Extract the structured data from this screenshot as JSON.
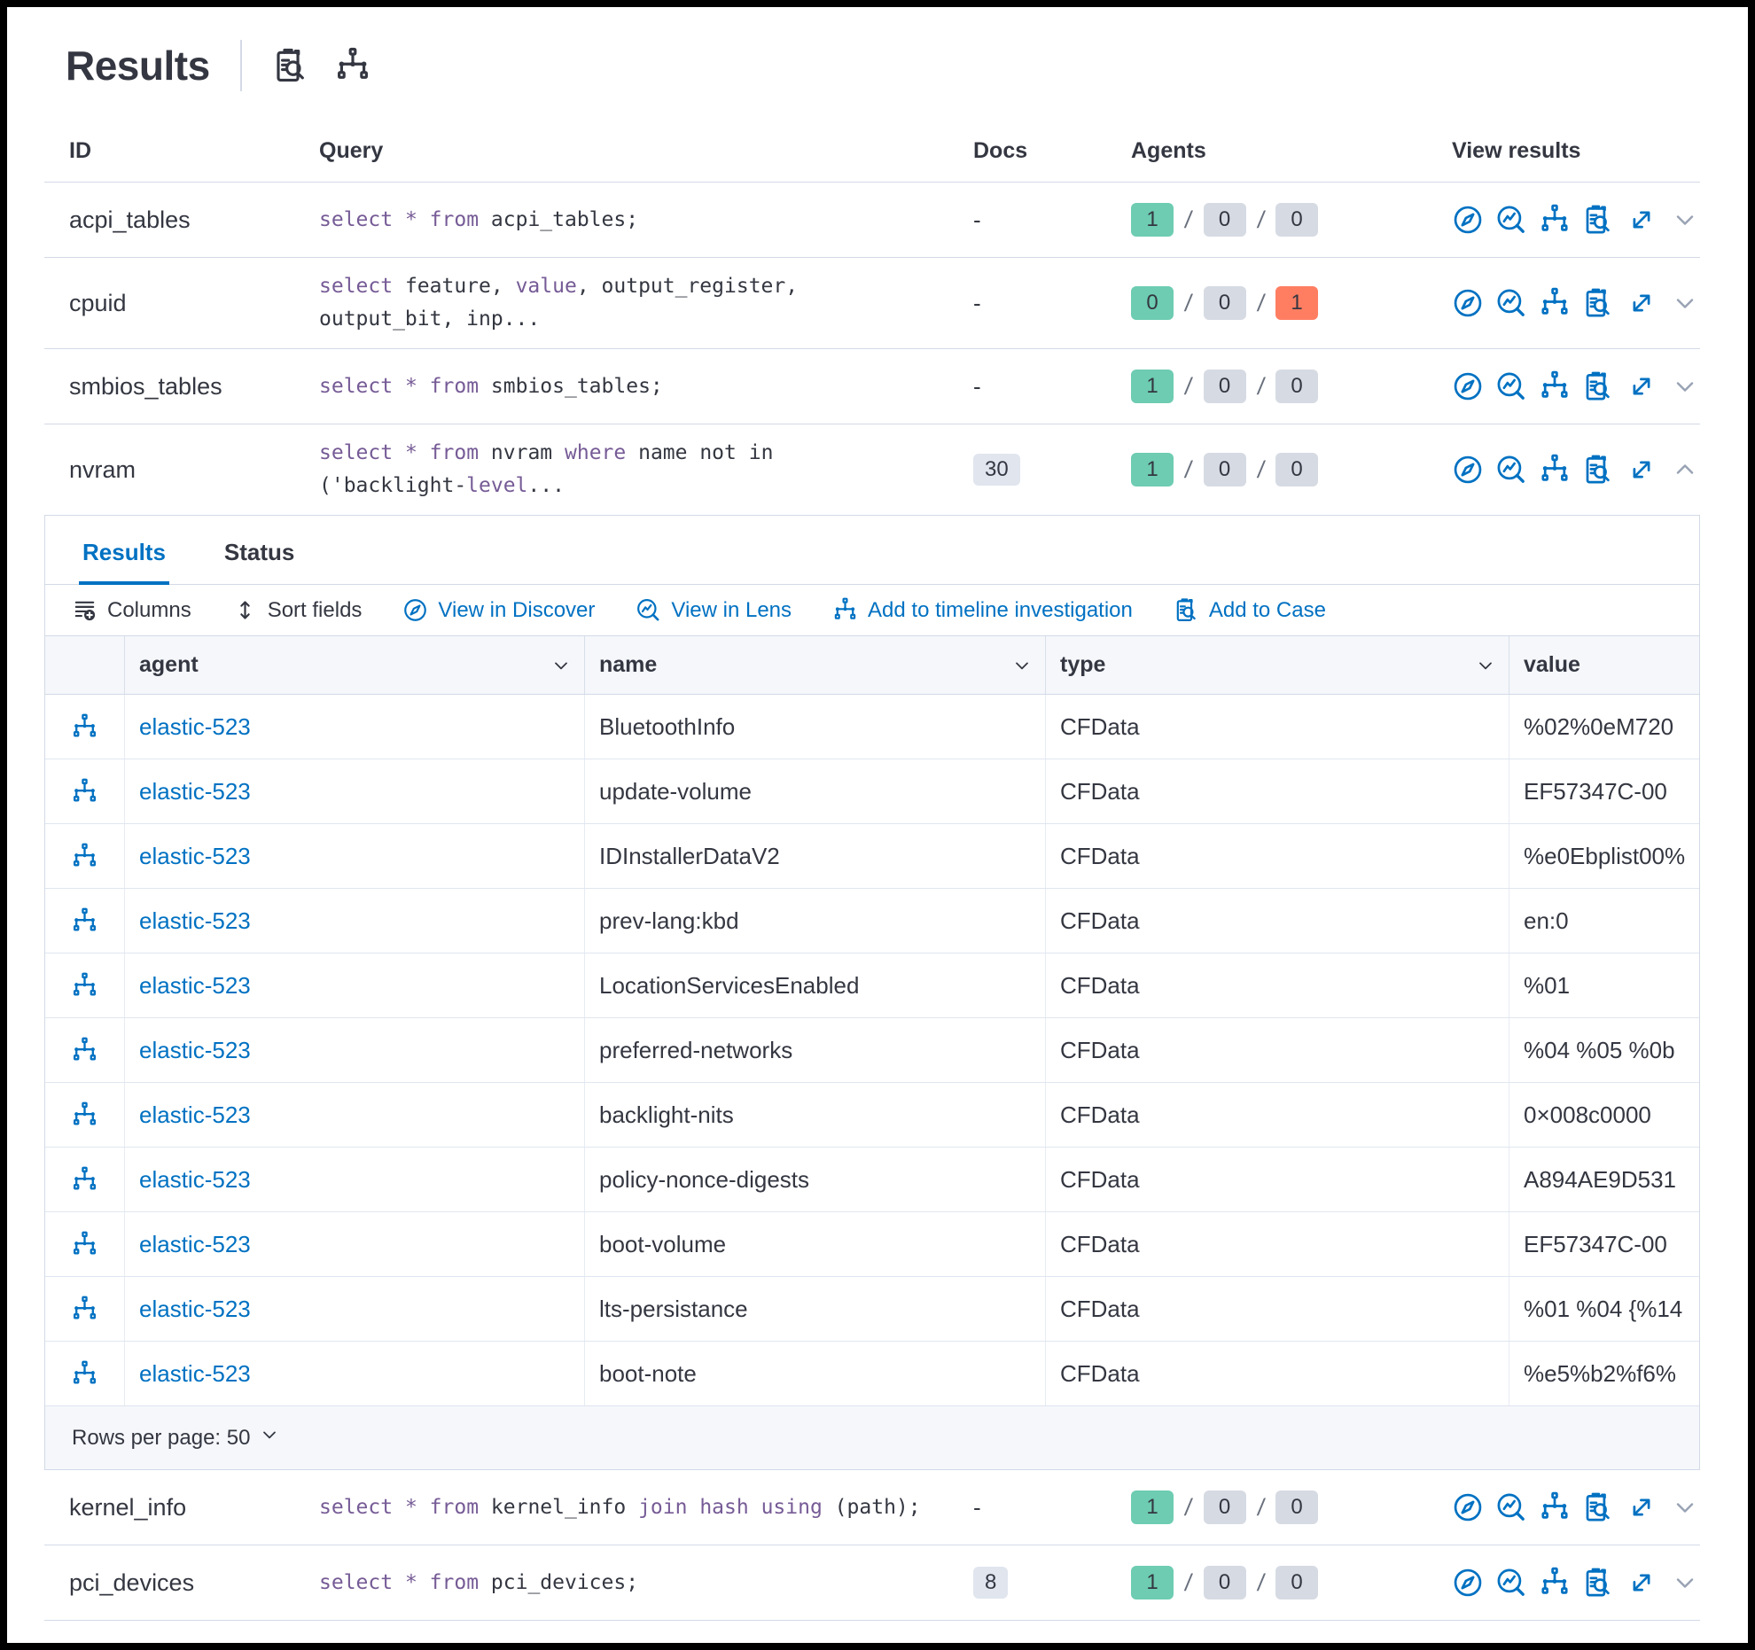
{
  "header": {
    "title": "Results",
    "icons": [
      "pack-icon",
      "timeline-icon"
    ]
  },
  "queries_table": {
    "columns": {
      "id": "ID",
      "query": "Query",
      "docs": "Docs",
      "agents": "Agents",
      "view_results": "View results"
    },
    "view_result_icons": [
      "discover-icon",
      "lens-icon",
      "timeline-icon",
      "case-icon",
      "expand-icon"
    ],
    "rows": [
      {
        "id": "acpi_tables",
        "expanded": false,
        "docs": {
          "text": "-"
        },
        "agents": [
          {
            "value": "1",
            "color": "success"
          },
          {
            "value": "0",
            "color": "default"
          },
          {
            "value": "0",
            "color": "default"
          }
        ],
        "query_lines": [
          [
            {
              "t": "select",
              "k": true
            },
            {
              "t": " ",
              "k": false
            },
            {
              "t": "*",
              "k": true
            },
            {
              "t": " ",
              "k": false
            },
            {
              "t": "from",
              "k": true
            },
            {
              "t": " acpi_tables;",
              "k": false
            }
          ]
        ]
      },
      {
        "id": "cpuid",
        "expanded": false,
        "docs": {
          "text": "-"
        },
        "agents": [
          {
            "value": "0",
            "color": "success"
          },
          {
            "value": "0",
            "color": "default"
          },
          {
            "value": "1",
            "color": "danger"
          }
        ],
        "query_lines": [
          [
            {
              "t": "select",
              "k": true
            },
            {
              "t": " feature, ",
              "k": false
            },
            {
              "t": "value",
              "k": true
            },
            {
              "t": ", output_register,",
              "k": false
            }
          ],
          [
            {
              "t": "output_bit, inp...",
              "k": false
            }
          ]
        ]
      },
      {
        "id": "smbios_tables",
        "expanded": false,
        "docs": {
          "text": "-"
        },
        "agents": [
          {
            "value": "1",
            "color": "success"
          },
          {
            "value": "0",
            "color": "default"
          },
          {
            "value": "0",
            "color": "default"
          }
        ],
        "query_lines": [
          [
            {
              "t": "select",
              "k": true
            },
            {
              "t": " ",
              "k": false
            },
            {
              "t": "*",
              "k": true
            },
            {
              "t": " ",
              "k": false
            },
            {
              "t": "from",
              "k": true
            },
            {
              "t": " smbios_tables;",
              "k": false
            }
          ]
        ]
      },
      {
        "id": "nvram",
        "expanded": true,
        "docs": {
          "badge": "30"
        },
        "agents": [
          {
            "value": "1",
            "color": "success"
          },
          {
            "value": "0",
            "color": "default"
          },
          {
            "value": "0",
            "color": "default"
          }
        ],
        "query_lines": [
          [
            {
              "t": "select",
              "k": true
            },
            {
              "t": " ",
              "k": false
            },
            {
              "t": "*",
              "k": true
            },
            {
              "t": " ",
              "k": false
            },
            {
              "t": "from",
              "k": true
            },
            {
              "t": " nvram ",
              "k": false
            },
            {
              "t": "where",
              "k": true
            },
            {
              "t": " name not in",
              "k": false
            }
          ],
          [
            {
              "t": "('backlight-",
              "k": false
            },
            {
              "t": "level",
              "k": true
            },
            {
              "t": "...",
              "k": false
            }
          ]
        ]
      },
      {
        "id": "kernel_info",
        "expanded": false,
        "docs": {
          "text": "-"
        },
        "agents": [
          {
            "value": "1",
            "color": "success"
          },
          {
            "value": "0",
            "color": "default"
          },
          {
            "value": "0",
            "color": "default"
          }
        ],
        "query_lines": [
          [
            {
              "t": "select",
              "k": true
            },
            {
              "t": " ",
              "k": false
            },
            {
              "t": "*",
              "k": true
            },
            {
              "t": " ",
              "k": false
            },
            {
              "t": "from",
              "k": true
            },
            {
              "t": " kernel_info ",
              "k": false
            },
            {
              "t": "join",
              "k": true
            },
            {
              "t": " ",
              "k": false
            },
            {
              "t": "hash",
              "k": true
            },
            {
              "t": " ",
              "k": false
            },
            {
              "t": "using",
              "k": true
            },
            {
              "t": " (path);",
              "k": false
            }
          ]
        ]
      },
      {
        "id": "pci_devices",
        "expanded": false,
        "docs": {
          "badge": "8"
        },
        "agents": [
          {
            "value": "1",
            "color": "success"
          },
          {
            "value": "0",
            "color": "default"
          },
          {
            "value": "0",
            "color": "default"
          }
        ],
        "query_lines": [
          [
            {
              "t": "select",
              "k": true
            },
            {
              "t": " ",
              "k": false
            },
            {
              "t": "*",
              "k": true
            },
            {
              "t": " ",
              "k": false
            },
            {
              "t": "from",
              "k": true
            },
            {
              "t": " pci_devices;",
              "k": false
            }
          ]
        ]
      }
    ]
  },
  "panel": {
    "attached_to_row": "nvram",
    "tabs": [
      {
        "label": "Results",
        "active": true
      },
      {
        "label": "Status",
        "active": false
      }
    ],
    "toolbar": [
      {
        "label": "Columns",
        "icon": "columns-icon",
        "style": "text"
      },
      {
        "label": "Sort fields",
        "icon": "sort-icon",
        "style": "text"
      },
      {
        "label": "View in Discover",
        "icon": "discover-icon",
        "style": "primary"
      },
      {
        "label": "View in Lens",
        "icon": "lens-icon",
        "style": "primary"
      },
      {
        "label": "Add to timeline investigation",
        "icon": "timeline-icon",
        "style": "primary"
      },
      {
        "label": "Add to Case",
        "icon": "case-icon",
        "style": "primary"
      }
    ],
    "grid": {
      "columns": [
        {
          "key": "agent",
          "label": "agent",
          "sortable": true
        },
        {
          "key": "name",
          "label": "name",
          "sortable": true
        },
        {
          "key": "type",
          "label": "type",
          "sortable": true
        },
        {
          "key": "value",
          "label": "value",
          "sortable": false
        }
      ],
      "rows": [
        {
          "agent": "elastic-523",
          "name": "BluetoothInfo",
          "type": "CFData",
          "value": "%02%0eM720"
        },
        {
          "agent": "elastic-523",
          "name": "update-volume",
          "type": "CFData",
          "value": "EF57347C-00"
        },
        {
          "agent": "elastic-523",
          "name": "IDInstallerDataV2",
          "type": "CFData",
          "value": "%e0Ebplist00%"
        },
        {
          "agent": "elastic-523",
          "name": "prev-lang:kbd",
          "type": "CFData",
          "value": "en:0"
        },
        {
          "agent": "elastic-523",
          "name": "LocationServicesEnabled",
          "type": "CFData",
          "value": "%01"
        },
        {
          "agent": "elastic-523",
          "name": "preferred-networks",
          "type": "CFData",
          "value": "%04 %05 %0b"
        },
        {
          "agent": "elastic-523",
          "name": "backlight-nits",
          "type": "CFData",
          "value": "0×008c0000"
        },
        {
          "agent": "elastic-523",
          "name": "policy-nonce-digests",
          "type": "CFData",
          "value": "A894AE9D531"
        },
        {
          "agent": "elastic-523",
          "name": "boot-volume",
          "type": "CFData",
          "value": "EF57347C-00"
        },
        {
          "agent": "elastic-523",
          "name": "lts-persistance",
          "type": "CFData",
          "value": "%01 %04 {%14"
        },
        {
          "agent": "elastic-523",
          "name": "boot-note",
          "type": "CFData",
          "value": "%e5%b2%f6%"
        }
      ]
    },
    "footer": {
      "rows_per_page": "Rows per page: 50"
    }
  },
  "colors": {
    "primary": "#0071C2",
    "success": "#6DCCB1",
    "danger": "#FF7E62",
    "badge_default": "#D6DAE3",
    "keyword": "#765B96",
    "text": "#343741"
  }
}
